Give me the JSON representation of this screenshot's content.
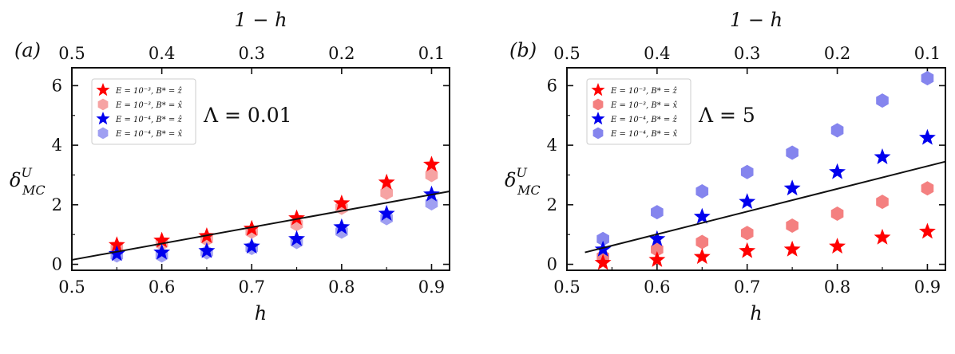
{
  "chart_data": [
    {
      "panel": "(a)",
      "type": "scatter",
      "annotation": "Λ = 0.01",
      "xlabel": "h",
      "ylabel": "δ",
      "ylabel_sup": "U",
      "ylabel_sub": "MC",
      "top_xlabel": "1 − h",
      "xlim": [
        0.5,
        0.92
      ],
      "ylim": [
        -0.2,
        6.6
      ],
      "xticks": [
        0.5,
        0.6,
        0.7,
        0.8,
        0.9
      ],
      "xtick_labels": [
        "0.5",
        "0.6",
        "0.7",
        "0.8",
        "0.9"
      ],
      "yticks": [
        0,
        2,
        4,
        6
      ],
      "ytick_labels": [
        "0",
        "2",
        "4",
        "6"
      ],
      "top_ticks": [
        0.5,
        0.4,
        0.3,
        0.2,
        0.1
      ],
      "top_tick_labels": [
        "0.5",
        "0.4",
        "0.3",
        "0.2",
        "0.1"
      ],
      "legend": {
        "position": "top-left",
        "entries": [
          {
            "label": "E = 10⁻³, B* = ẑ",
            "marker": "star",
            "color": "#ff0000"
          },
          {
            "label": "E = 10⁻³, B* = x̂",
            "marker": "hexagon",
            "color": "#f6a3a3"
          },
          {
            "label": "E = 10⁻⁴, B* = ẑ",
            "marker": "star",
            "color": "#0000ee"
          },
          {
            "label": "E = 10⁻⁴, B* = x̂",
            "marker": "hexagon",
            "color": "#9f9ff2"
          }
        ]
      },
      "series": [
        {
          "name": "E = 10⁻³, B* = ẑ",
          "marker": "star",
          "color": "#ff0000",
          "x": [
            0.55,
            0.6,
            0.65,
            0.7,
            0.75,
            0.8,
            0.85,
            0.9
          ],
          "y": [
            0.65,
            0.8,
            0.95,
            1.2,
            1.55,
            2.05,
            2.75,
            3.35
          ]
        },
        {
          "name": "E = 10⁻³, B* = x̂",
          "marker": "hexagon",
          "color": "#f6a3a3",
          "x": [
            0.55,
            0.6,
            0.65,
            0.7,
            0.75,
            0.8,
            0.85,
            0.9
          ],
          "y": [
            0.55,
            0.7,
            0.85,
            1.1,
            1.35,
            1.9,
            2.4,
            3.0
          ]
        },
        {
          "name": "E = 10⁻⁴, B* = ẑ",
          "marker": "star",
          "color": "#0000ee",
          "x": [
            0.55,
            0.6,
            0.65,
            0.7,
            0.75,
            0.8,
            0.85,
            0.9
          ],
          "y": [
            0.35,
            0.4,
            0.45,
            0.6,
            0.85,
            1.25,
            1.7,
            2.35
          ]
        },
        {
          "name": "E = 10⁻⁴, B* = x̂",
          "marker": "hexagon",
          "color": "#9f9ff2",
          "x": [
            0.55,
            0.6,
            0.65,
            0.7,
            0.75,
            0.8,
            0.85,
            0.9
          ],
          "y": [
            0.3,
            0.3,
            0.4,
            0.55,
            0.75,
            1.1,
            1.55,
            2.05
          ]
        }
      ],
      "fit_line": {
        "x": [
          0.5,
          0.92
        ],
        "y": [
          0.15,
          2.45
        ]
      }
    },
    {
      "panel": "(b)",
      "type": "scatter",
      "annotation": "Λ = 5",
      "xlabel": "h",
      "ylabel": "δ",
      "ylabel_sup": "U",
      "ylabel_sub": "MC",
      "top_xlabel": "1 − h",
      "xlim": [
        0.5,
        0.92
      ],
      "ylim": [
        -0.2,
        6.6
      ],
      "xticks": [
        0.5,
        0.6,
        0.7,
        0.8,
        0.9
      ],
      "xtick_labels": [
        "0.5",
        "0.6",
        "0.7",
        "0.8",
        "0.9"
      ],
      "yticks": [
        0,
        2,
        4,
        6
      ],
      "ytick_labels": [
        "0",
        "2",
        "4",
        "6"
      ],
      "top_ticks": [
        0.5,
        0.4,
        0.3,
        0.2,
        0.1
      ],
      "top_tick_labels": [
        "0.5",
        "0.4",
        "0.3",
        "0.2",
        "0.1"
      ],
      "legend": {
        "position": "top-left",
        "entries": [
          {
            "label": "E = 10⁻³, B* = ẑ",
            "marker": "star",
            "color": "#ff0000"
          },
          {
            "label": "E = 10⁻³, B* = x̂",
            "marker": "hexagon",
            "color": "#f48080"
          },
          {
            "label": "E = 10⁻⁴, B* = ẑ",
            "marker": "star",
            "color": "#0000ee"
          },
          {
            "label": "E = 10⁻⁴, B* = x̂",
            "marker": "hexagon",
            "color": "#8585ee"
          }
        ]
      },
      "series": [
        {
          "name": "E = 10⁻³, B* = ẑ",
          "marker": "star",
          "color": "#ff0000",
          "x": [
            0.54,
            0.6,
            0.65,
            0.7,
            0.75,
            0.8,
            0.85,
            0.9
          ],
          "y": [
            0.05,
            0.15,
            0.25,
            0.45,
            0.5,
            0.6,
            0.9,
            1.1
          ]
        },
        {
          "name": "E = 10⁻³, B* = x̂",
          "marker": "hexagon",
          "color": "#f48080",
          "x": [
            0.54,
            0.6,
            0.65,
            0.7,
            0.75,
            0.8,
            0.85,
            0.9
          ],
          "y": [
            0.25,
            0.5,
            0.75,
            1.05,
            1.3,
            1.7,
            2.1,
            2.55
          ]
        },
        {
          "name": "E = 10⁻⁴, B* = ẑ",
          "marker": "star",
          "color": "#0000ee",
          "x": [
            0.54,
            0.6,
            0.65,
            0.7,
            0.75,
            0.8,
            0.85,
            0.9
          ],
          "y": [
            0.5,
            0.85,
            1.6,
            2.1,
            2.55,
            3.1,
            3.6,
            4.25
          ]
        },
        {
          "name": "E = 10⁻⁴, B* = x̂",
          "marker": "hexagon",
          "color": "#8585ee",
          "x": [
            0.54,
            0.6,
            0.65,
            0.7,
            0.75,
            0.8,
            0.85,
            0.9
          ],
          "y": [
            0.85,
            1.75,
            2.45,
            3.1,
            3.75,
            4.5,
            5.5,
            6.25
          ]
        }
      ],
      "fit_line": {
        "x": [
          0.52,
          0.92
        ],
        "y": [
          0.4,
          3.45
        ]
      }
    }
  ]
}
